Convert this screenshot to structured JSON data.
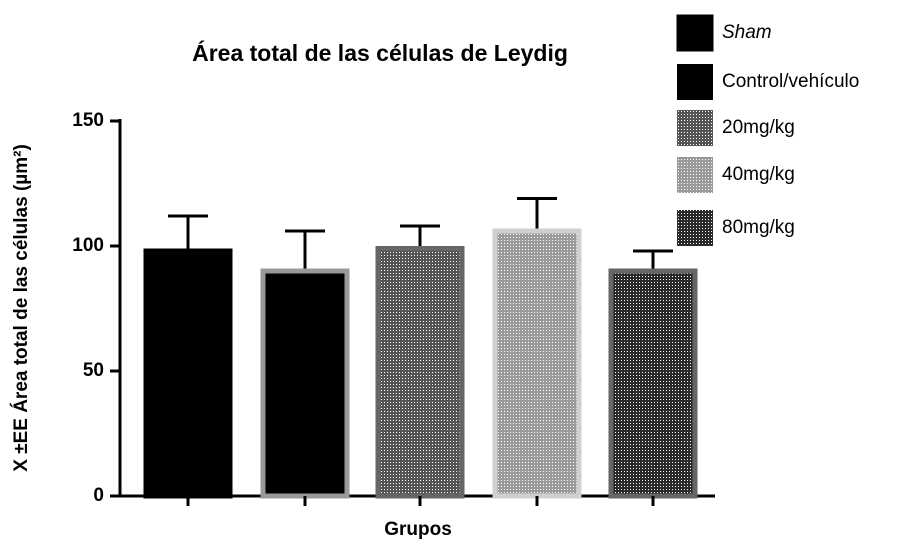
{
  "chart_data": {
    "type": "bar",
    "title": "Área total de las células de Leydig",
    "x_label": "Grupos",
    "y_label": "X ±EE Área total de las células (µm²)",
    "ylim": [
      0,
      150
    ],
    "yticks": [
      0,
      50,
      100,
      150
    ],
    "series": [
      {
        "name": "Sham",
        "color": "#000000",
        "edge": "#000000",
        "dots": false,
        "values": [
          98
        ],
        "errors": [
          14
        ]
      },
      {
        "name": "Control/vehículo",
        "color": "#000000",
        "edge": "#999999",
        "dots": false,
        "values": [
          90
        ],
        "errors": [
          16
        ]
      },
      {
        "name": "20mg/kg",
        "color": "#555555",
        "edge": "#666666",
        "dots": true,
        "values": [
          99
        ],
        "errors": [
          9
        ]
      },
      {
        "name": "40mg/kg",
        "color": "#9a9a9a",
        "edge": "#d0d0d0",
        "dots": true,
        "values": [
          106
        ],
        "errors": [
          13
        ]
      },
      {
        "name": "80mg/kg",
        "color": "#2a2a2a",
        "edge": "#666666",
        "dots": true,
        "values": [
          90
        ],
        "errors": [
          8
        ]
      }
    ]
  }
}
